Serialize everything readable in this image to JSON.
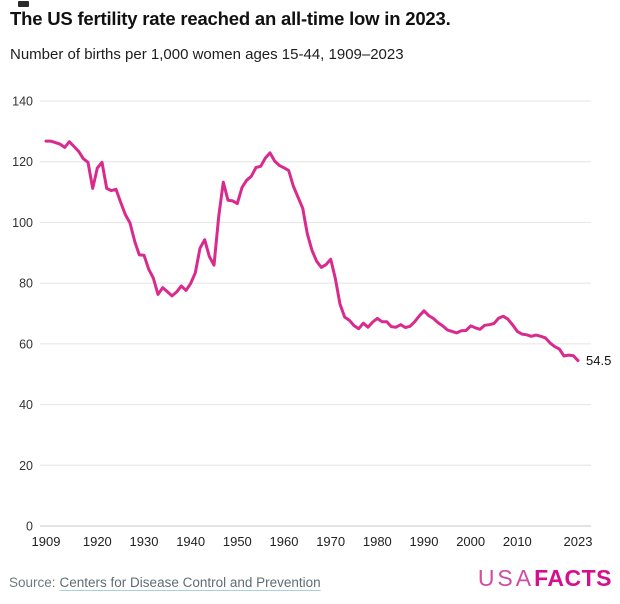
{
  "header": {
    "title": "The US fertility rate reached an all-time low in 2023.",
    "subtitle": "Number of births per 1,000 women ages 15-44, 1909–2023"
  },
  "footer": {
    "source_prefix": "Source:",
    "source_link": "Centers for Disease Control and Prevention",
    "logo_usa": "USA",
    "logo_facts": "FACTS"
  },
  "colors": {
    "line": "#d92a8d",
    "grid": "#e4e4e4",
    "zero_axis": "#c7c7c7",
    "y_tick_text": "#333333",
    "x_tick_text": "#222222",
    "end_label_text": "#111111",
    "logo_usa": "#cf4da2",
    "logo_facts": "#d60f8d"
  },
  "chart_data": {
    "type": "line",
    "title": "The US fertility rate reached an all-time low in 2023.",
    "subtitle": "Number of births per 1,000 women ages 15-44, 1909–2023",
    "xlabel": "",
    "ylabel": "",
    "xlim": [
      1909,
      2023
    ],
    "ylim": [
      0,
      140
    ],
    "grid": "horizontal",
    "legend": "none",
    "end_label": "54.5",
    "y_ticks": [
      0,
      20,
      40,
      60,
      80,
      100,
      120,
      140
    ],
    "x_ticks": [
      1909,
      1920,
      1930,
      1940,
      1950,
      1960,
      1970,
      1980,
      1990,
      2000,
      2010,
      2023
    ],
    "series_name": "Births per 1,000 women ages 15-44",
    "x": [
      1909,
      1910,
      1911,
      1912,
      1913,
      1914,
      1915,
      1916,
      1917,
      1918,
      1919,
      1920,
      1921,
      1922,
      1923,
      1924,
      1925,
      1926,
      1927,
      1928,
      1929,
      1930,
      1931,
      1932,
      1933,
      1934,
      1935,
      1936,
      1937,
      1938,
      1939,
      1940,
      1941,
      1942,
      1943,
      1944,
      1945,
      1946,
      1947,
      1948,
      1949,
      1950,
      1951,
      1952,
      1953,
      1954,
      1955,
      1956,
      1957,
      1958,
      1959,
      1960,
      1961,
      1962,
      1963,
      1964,
      1965,
      1966,
      1967,
      1968,
      1969,
      1970,
      1971,
      1972,
      1973,
      1974,
      1975,
      1976,
      1977,
      1978,
      1979,
      1980,
      1981,
      1982,
      1983,
      1984,
      1985,
      1986,
      1987,
      1988,
      1989,
      1990,
      1991,
      1992,
      1993,
      1994,
      1995,
      1996,
      1997,
      1998,
      1999,
      2000,
      2001,
      2002,
      2003,
      2004,
      2005,
      2006,
      2007,
      2008,
      2009,
      2010,
      2011,
      2012,
      2013,
      2014,
      2015,
      2016,
      2017,
      2018,
      2019,
      2020,
      2021,
      2022,
      2023
    ],
    "values": [
      126.8,
      126.8,
      126.3,
      125.8,
      124.7,
      126.6,
      125.0,
      123.4,
      121.0,
      119.8,
      111.2,
      117.9,
      119.8,
      111.2,
      110.5,
      110.9,
      106.6,
      102.6,
      99.8,
      93.8,
      89.3,
      89.2,
      84.6,
      81.7,
      76.3,
      78.5,
      77.2,
      75.8,
      77.1,
      79.1,
      77.6,
      79.9,
      83.4,
      91.5,
      94.3,
      88.8,
      85.9,
      101.9,
      113.3,
      107.3,
      107.1,
      106.2,
      111.5,
      113.9,
      115.2,
      118.1,
      118.5,
      121.2,
      122.9,
      120.2,
      118.8,
      118.0,
      117.1,
      112.0,
      108.3,
      104.7,
      96.3,
      90.8,
      87.2,
      85.2,
      86.1,
      87.9,
      81.6,
      73.1,
      68.8,
      67.8,
      66.0,
      65.0,
      66.8,
      65.5,
      67.2,
      68.4,
      67.3,
      67.3,
      65.7,
      65.5,
      66.3,
      65.4,
      65.8,
      67.3,
      69.2,
      70.9,
      69.3,
      68.4,
      67.0,
      65.9,
      64.6,
      64.1,
      63.6,
      64.3,
      64.4,
      65.9,
      65.3,
      64.8,
      66.1,
      66.3,
      66.7,
      68.5,
      69.1,
      68.1,
      66.2,
      64.1,
      63.2,
      63.0,
      62.5,
      62.9,
      62.5,
      62.0,
      60.3,
      59.1,
      58.3,
      56.0,
      56.3,
      56.1,
      54.5
    ]
  }
}
